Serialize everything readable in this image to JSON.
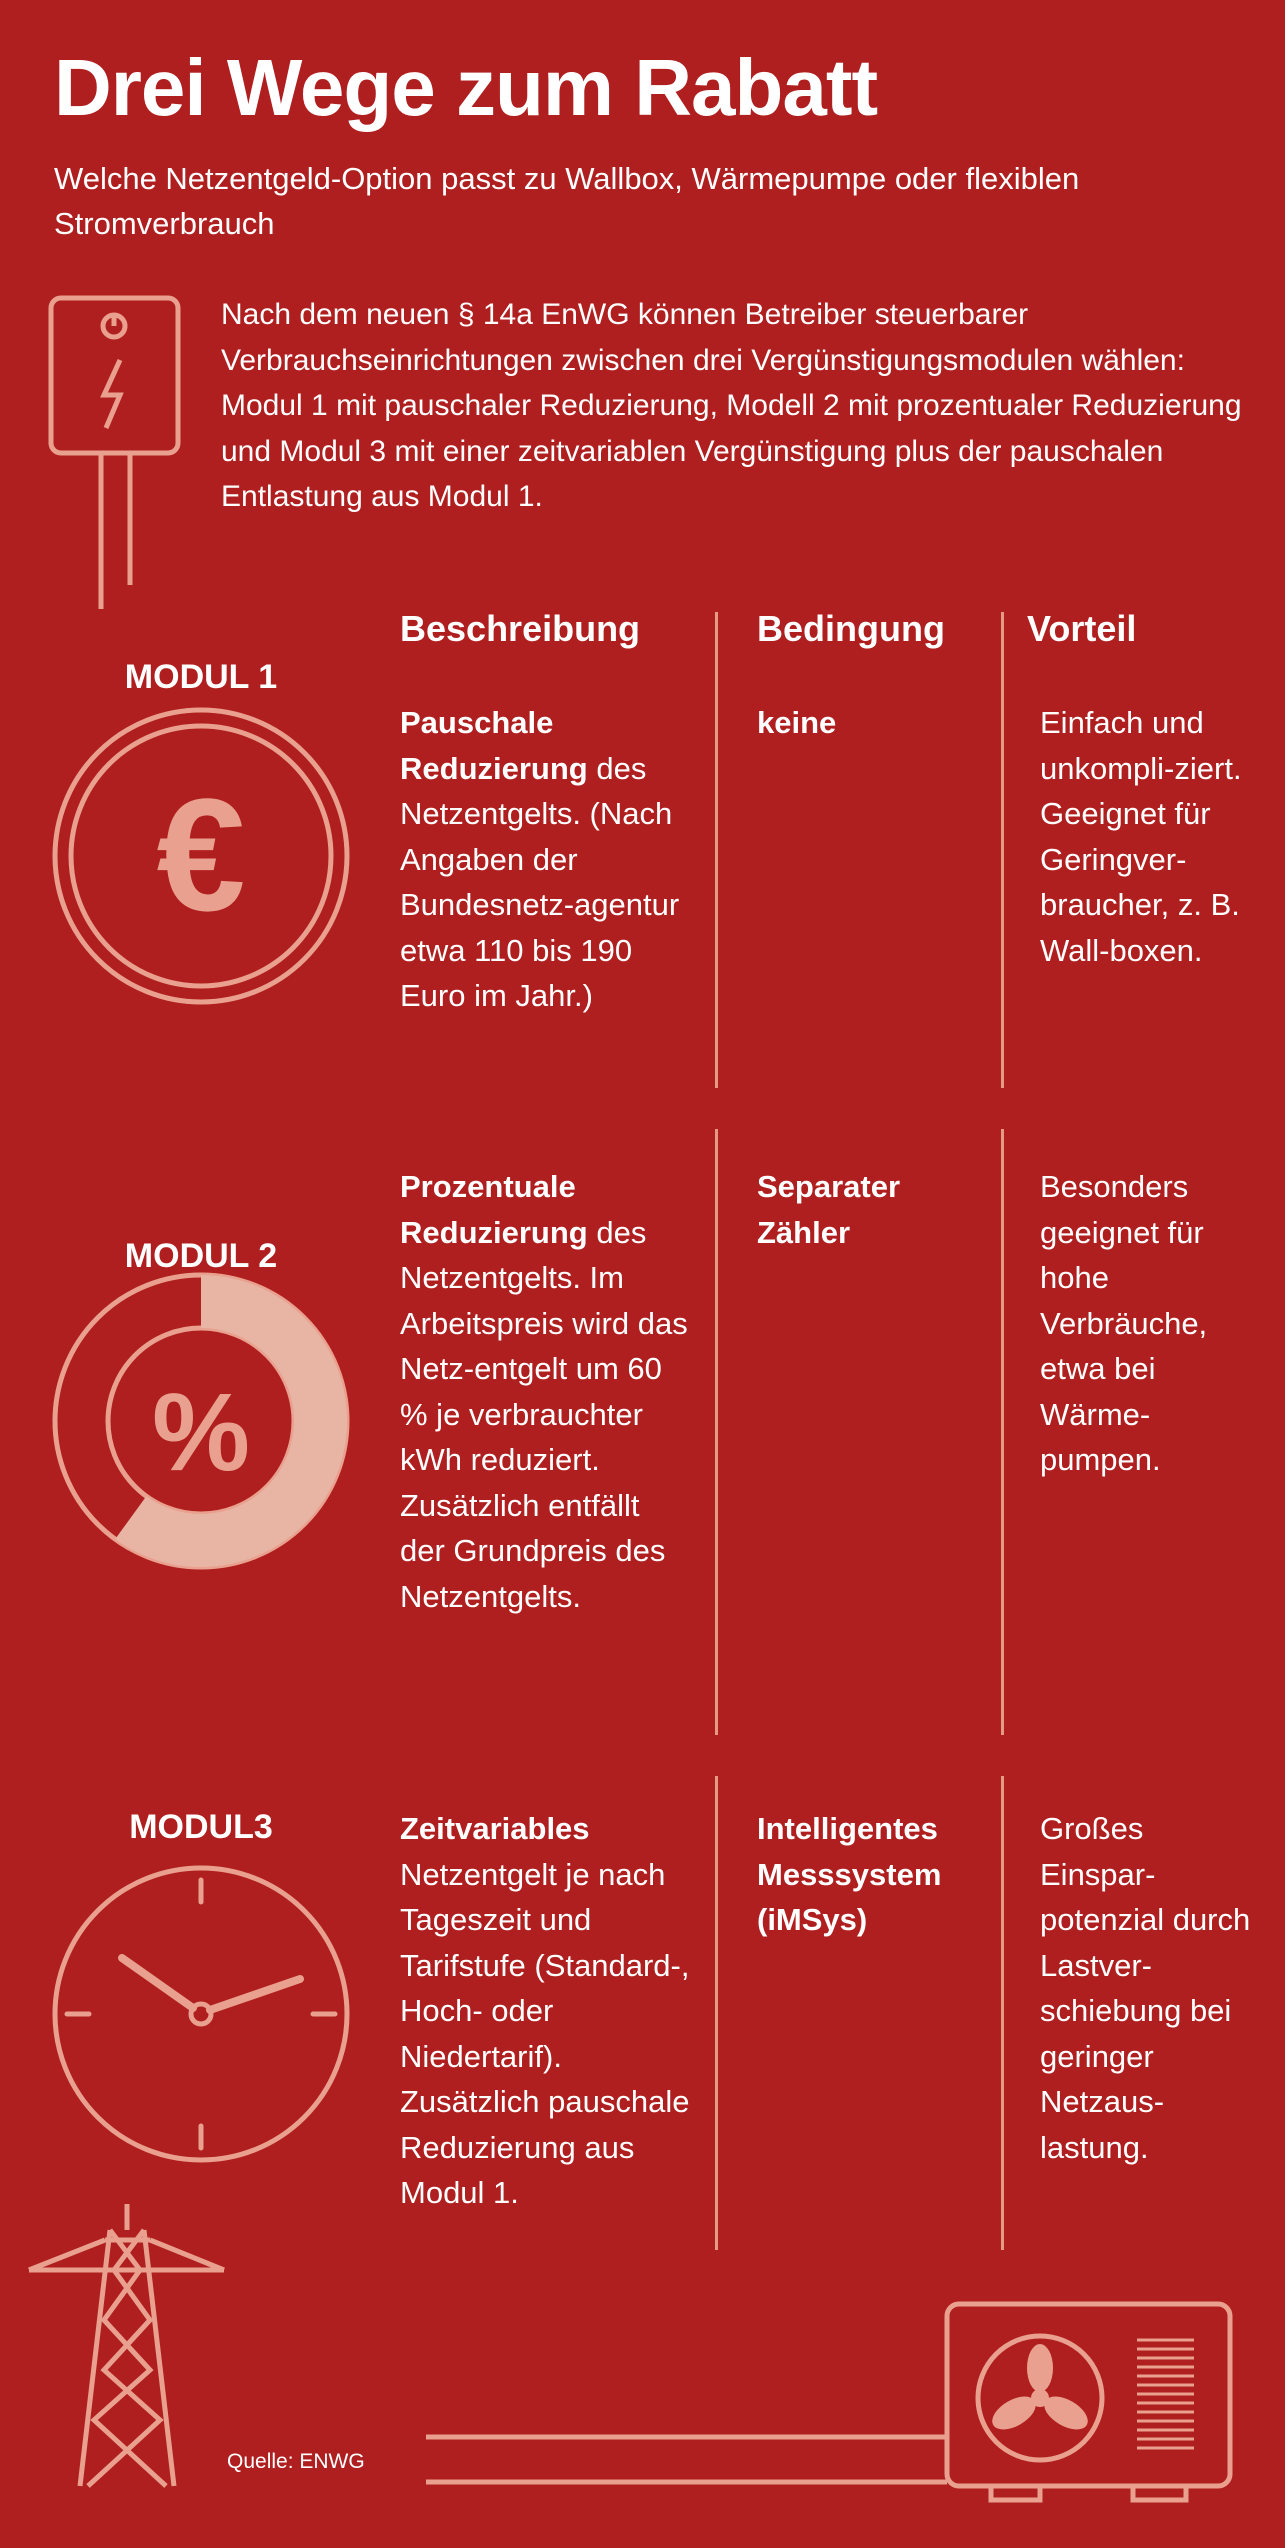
{
  "header": {
    "title": "Drei Wege zum Rabatt",
    "subtitle": "Welche Netzentgeld-Option passt zu Wallbox, Wärmepumpe oder flexiblen Stromverbrauch"
  },
  "intro": "Nach dem neuen § 14a EnWG können Betreiber steuerbarer Verbrauchseinrichtungen zwischen drei Vergünstigungsmodulen wählen: Modul 1 mit pauschaler Reduzierung, Modell 2 mit prozentualer Reduzierung und Modul 3 mit einer zeitvariablen Vergünstigung plus der pauschalen Entlastung aus Modul 1.",
  "table": {
    "headers": [
      "Beschreibung",
      "Bedingung",
      "Vorteil"
    ],
    "rows": [
      {
        "label": "MODUL 1",
        "symbol": "€",
        "description": {
          "bold": "Pauschale Reduzierung",
          "text": "des Netzentgelts. (Nach Angaben der Bundesnetz-agentur etwa 110 bis 190 Euro im Jahr.)"
        },
        "condition": "keine",
        "advantage": "Einfach und unkompli-ziert. Geeignet für Geringver-braucher, z. B. Wall-boxen."
      },
      {
        "label": "MODUL 2",
        "symbol": "%",
        "description": {
          "bold": "Prozentuale Reduzierung",
          "text": "des Netzentgelts. Im Arbeitspreis wird das Netz-entgelt um 60 % je verbrauchter kWh reduziert. Zusätzlich entfällt der Grundpreis des Netzentgelts."
        },
        "condition": "Separater Zähler",
        "advantage": "Besonders geeignet für hohe Verbräuche, etwa bei Wärme-pumpen."
      },
      {
        "label": "MODUL3",
        "description": {
          "bold": "Zeitvariables",
          "text": "Netzentgelt je nach Tageszeit und Tarifstufe (Standard-, Hoch- oder Niedertarif). Zusätzlich pauschale Reduzierung aus Modul 1."
        },
        "condition": "Intelligentes Messsystem (iMSys)",
        "advantage": "Großes Einspar-potenzial durch Lastver-schiebung bei geringer Netzaus-lastung."
      }
    ]
  },
  "source": "Quelle: ENWG"
}
